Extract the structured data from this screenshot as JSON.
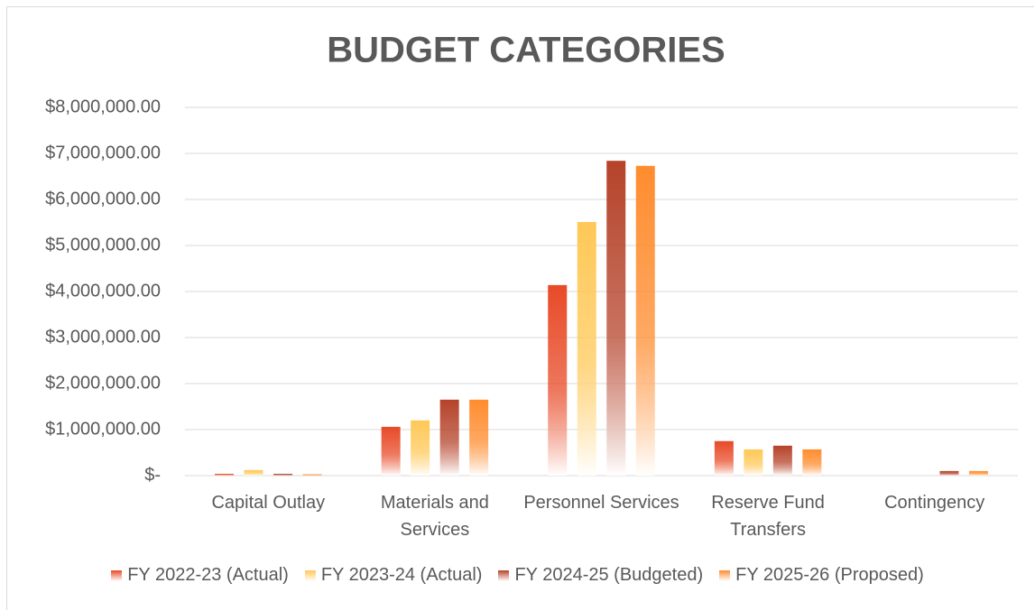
{
  "chart_data": {
    "type": "bar",
    "title": "BUDGET CATEGORIES",
    "categories": [
      "Capital Outlay",
      "Materials and Services",
      "Personnel Services",
      "Reserve Fund Transfers",
      "Contingency"
    ],
    "series": [
      {
        "name": "FY 2022-23 (Actual)",
        "color": "#e84a27",
        "values": [
          40000,
          1060000,
          4140000,
          750000,
          0
        ]
      },
      {
        "name": "FY 2023-24 (Actual)",
        "color": "#ffc857",
        "values": [
          120000,
          1200000,
          5510000,
          570000,
          0
        ]
      },
      {
        "name": "FY 2024-25 (Budgeted)",
        "color": "#b5432a",
        "values": [
          40000,
          1650000,
          6840000,
          650000,
          100000
        ]
      },
      {
        "name": "FY 2025-26 (Proposed)",
        "color": "#ff8c2e",
        "values": [
          30000,
          1650000,
          6730000,
          570000,
          100000
        ]
      }
    ],
    "ylim": [
      0,
      8000000
    ],
    "yticks": [
      {
        "value": 0,
        "label": "$-"
      },
      {
        "value": 1000000,
        "label": "$1,000,000.00"
      },
      {
        "value": 2000000,
        "label": "$2,000,000.00"
      },
      {
        "value": 3000000,
        "label": "$3,000,000.00"
      },
      {
        "value": 4000000,
        "label": "$4,000,000.00"
      },
      {
        "value": 5000000,
        "label": "$5,000,000.00"
      },
      {
        "value": 6000000,
        "label": "$6,000,000.00"
      },
      {
        "value": 7000000,
        "label": "$7,000,000.00"
      },
      {
        "value": 8000000,
        "label": "$8,000,000.00"
      }
    ],
    "grid": true,
    "legend": "bottom"
  }
}
